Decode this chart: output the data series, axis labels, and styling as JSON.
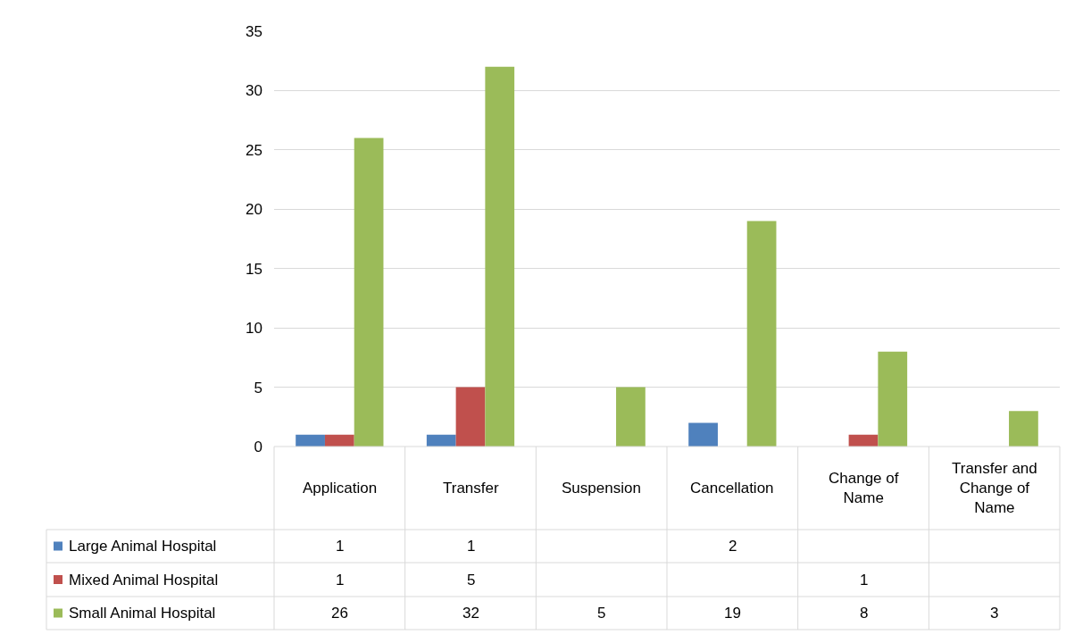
{
  "chart_data": {
    "type": "bar",
    "categories": [
      "Application",
      "Transfer",
      "Suspension",
      "Cancellation",
      "Change of Name",
      "Transfer and Change of Name"
    ],
    "series": [
      {
        "name": "Large Animal Hospital",
        "color": "#4f81bd",
        "values": [
          1,
          1,
          null,
          2,
          null,
          null
        ]
      },
      {
        "name": "Mixed Animal Hospital",
        "color": "#c0504d",
        "values": [
          1,
          5,
          null,
          null,
          1,
          null
        ]
      },
      {
        "name": "Small Animal Hospital",
        "color": "#9bbb59",
        "values": [
          26,
          32,
          5,
          19,
          8,
          3
        ]
      }
    ],
    "ylim": [
      0,
      35
    ],
    "yticks": [
      0,
      5,
      10,
      15,
      20,
      25,
      30,
      35
    ],
    "grid": "y",
    "legend": "bottom left",
    "data_labels": true
  }
}
